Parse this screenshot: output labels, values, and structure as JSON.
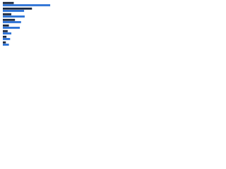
{
  "chart_data": {
    "type": "bar",
    "orientation": "horizontal",
    "categories": [
      null,
      null,
      null,
      null,
      null,
      null,
      null,
      null
    ],
    "series": [
      {
        "color": "#17253d",
        "values": [
          18,
          48,
          14,
          20,
          10,
          8,
          6,
          5
        ]
      },
      {
        "color": "#2e73d6",
        "values": [
          78,
          35,
          36,
          30,
          28,
          14,
          12,
          10
        ]
      }
    ],
    "xlim": [
      0,
      100
    ]
  }
}
